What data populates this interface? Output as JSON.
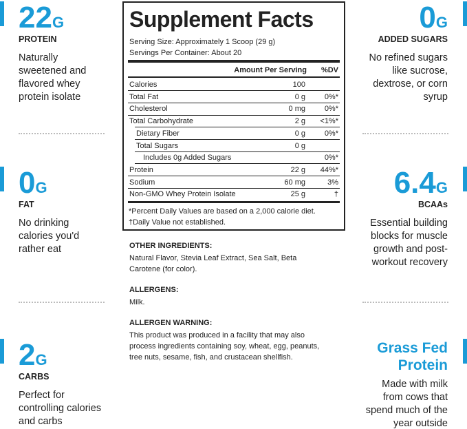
{
  "left_features": [
    {
      "big": "22",
      "unit": "G",
      "label": "PROTEIN",
      "description": [
        "Naturally",
        "sweetened and",
        "flavored whey",
        "protein isolate"
      ]
    },
    {
      "big": "0",
      "unit": "G",
      "label": "FAT",
      "description": [
        "No drinking",
        "calories you'd",
        "rather eat"
      ]
    },
    {
      "big": "2",
      "unit": "G",
      "label": "CARBS",
      "description": [
        "Perfect for",
        "controlling calories",
        "and carbs"
      ]
    }
  ],
  "right_features": [
    {
      "big": "0",
      "unit": "G",
      "label": "ADDED SUGARS",
      "description": [
        "No refined sugars",
        "like sucrose,",
        "dextrose, or corn",
        "syrup"
      ]
    },
    {
      "big": "6.4",
      "unit": "G",
      "label": "BCAAs",
      "description": [
        "Essential building",
        "blocks for muscle",
        "growth and post-",
        "workout recovery"
      ]
    },
    {
      "title": [
        "Grass Fed",
        "Protein"
      ],
      "description": [
        "Made with milk",
        "from cows that",
        "spend much of the",
        "year outside"
      ]
    }
  ],
  "facts": {
    "title": "Supplement Facts",
    "serving_size": "Serving Size: Approximately 1 Scoop (29 g)",
    "servings_per_container": "Servings Per Container: About 20",
    "amount_header": "Amount Per Serving",
    "dv_header": "%DV",
    "rows": [
      {
        "name": "Calories",
        "amount": "100",
        "dv": null
      },
      {
        "name": "Total Fat",
        "amount": "0 g",
        "dv": "0%*"
      },
      {
        "name": "Cholesterol",
        "amount": "0 mg",
        "dv": "0%*"
      },
      {
        "name": "Total Carbohydrate",
        "amount": "2 g",
        "dv": "<1%*"
      },
      {
        "name": "Dietary Fiber",
        "amount": "0 g",
        "dv": "0%*",
        "indent": 1
      },
      {
        "name": "Total Sugars",
        "amount": "0 g",
        "dv": null,
        "indent": 1
      },
      {
        "name": "Includes 0g Added Sugars",
        "amount": null,
        "dv": "0%*",
        "indent": 2
      },
      {
        "name": "Protein",
        "amount": "22 g",
        "dv": "44%*"
      },
      {
        "name": "Sodium",
        "amount": "60 mg",
        "dv": "3%"
      },
      {
        "name": "Non-GMO Whey Protein Isolate",
        "amount": "25 g",
        "dv": "†"
      }
    ],
    "footnotes": [
      "*Percent Daily Values are based on a 2,000 calorie diet.",
      "†Daily Value not established."
    ]
  },
  "sections": [
    {
      "heading": "OTHER INGREDIENTS:",
      "lines": [
        "Natural Flavor, Stevia Leaf Extract, Sea Salt, Beta",
        "Carotene (for color)."
      ]
    },
    {
      "heading": "ALLERGENS:",
      "lines": [
        "Milk."
      ]
    },
    {
      "heading": "ALLERGEN WARNING:",
      "lines": [
        "This product was produced in a facility that may also",
        "process ingredients containing soy, wheat, egg, peanuts,",
        "tree nuts, sesame, fish, and crustacean shellfish."
      ]
    }
  ]
}
